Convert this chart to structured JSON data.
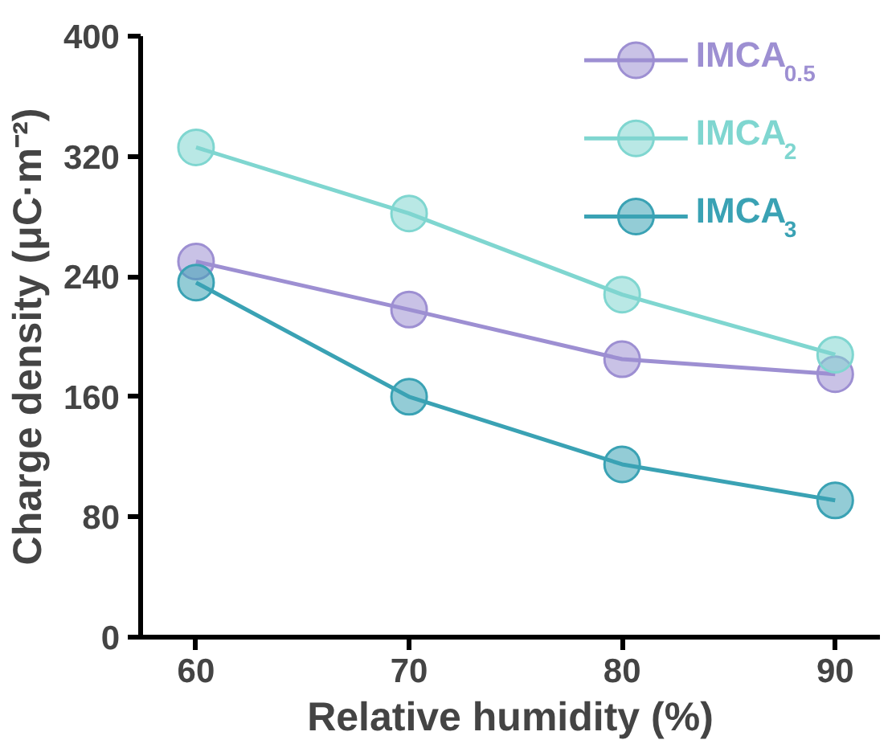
{
  "chart_data": {
    "type": "line",
    "xlabel": "Relative humidity (%)",
    "ylabel": "Charge density (μC·m⁻²)",
    "x": [
      60,
      70,
      80,
      90
    ],
    "xlim": [
      57.4,
      92.1
    ],
    "xticks": [
      60,
      70,
      80,
      90
    ],
    "ylim": [
      0,
      400
    ],
    "yticks": [
      0,
      80,
      160,
      240,
      320,
      400
    ],
    "series": [
      {
        "name": "IMCA$_{0.5}$",
        "color": "#9d8fd2",
        "values": [
          250,
          218,
          185,
          175
        ]
      },
      {
        "name": "IMCA$_{2}$",
        "color": "#7fd6d0",
        "values": [
          326,
          282,
          228,
          188
        ]
      },
      {
        "name": "IMCA$_{3}$",
        "color": "#3aa2b4",
        "values": [
          236,
          160,
          115,
          91
        ]
      }
    ],
    "marker": "circle",
    "line_style": "solid",
    "legend": "top right",
    "grid": false
  }
}
